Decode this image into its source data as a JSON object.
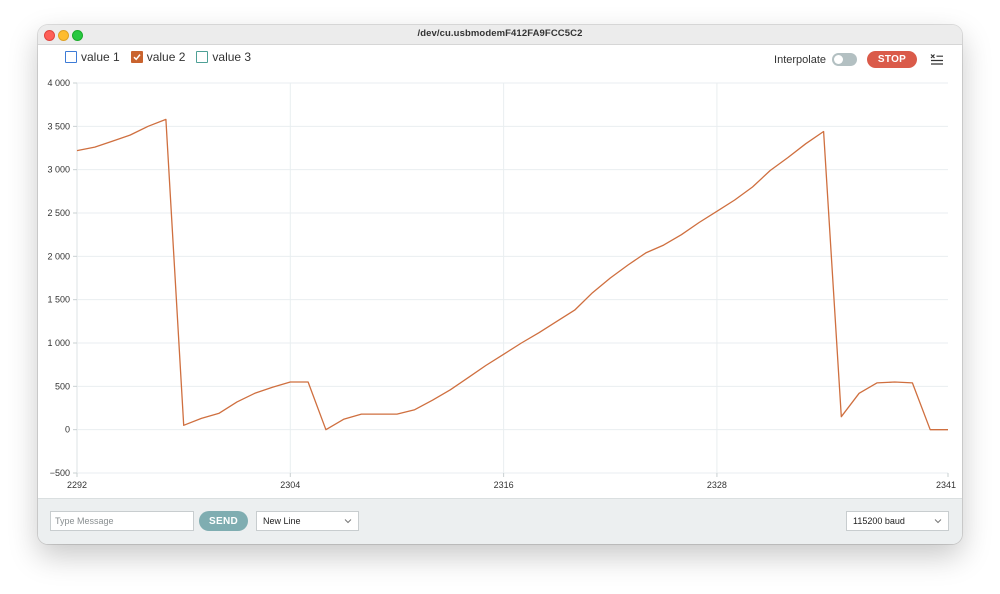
{
  "window": {
    "title": "/dev/cu.usbmodemF412FA9FCC5C2"
  },
  "legend": [
    {
      "label": "value 1",
      "checked": false,
      "color": "#3d7bd6"
    },
    {
      "label": "value 2",
      "checked": true,
      "color": "#c9632e"
    },
    {
      "label": "value 3",
      "checked": false,
      "color": "#4ea096"
    }
  ],
  "toolbar": {
    "interpolate_label": "Interpolate",
    "interpolate_on": false,
    "stop_label": "STOP",
    "clear_icon": "clear-list-icon"
  },
  "colors": {
    "line": "#cf6f3f",
    "stop": "#da5b4a",
    "send": "#7fadb1",
    "grid": "#e9eef0"
  },
  "chart_data": {
    "type": "line",
    "title": "",
    "xlabel": "",
    "ylabel": "",
    "ylim": [
      -500,
      4000
    ],
    "xlim": [
      2292,
      2341
    ],
    "y_ticks": [
      -500,
      0,
      500,
      1000,
      1500,
      2000,
      2500,
      3000,
      3500,
      4000
    ],
    "y_tick_labels": [
      "−500",
      "0",
      "500",
      "1 000",
      "1 500",
      "2 000",
      "2 500",
      "3 000",
      "3 500",
      "4 000"
    ],
    "x_ticks": [
      2292,
      2304,
      2316,
      2328,
      2341
    ],
    "x_tick_labels": [
      "2292",
      "2304",
      "2316",
      "2328",
      "2341"
    ],
    "grid": true,
    "series": [
      {
        "name": "value 2",
        "x": [
          2292,
          2293,
          2294,
          2295,
          2296,
          2297,
          2298,
          2299,
          2300,
          2301,
          2302,
          2303,
          2304,
          2305,
          2306,
          2307,
          2308,
          2309,
          2310,
          2311,
          2312,
          2313,
          2314,
          2315,
          2316,
          2317,
          2318,
          2319,
          2320,
          2321,
          2322,
          2323,
          2324,
          2325,
          2326,
          2327,
          2328,
          2329,
          2330,
          2331,
          2332,
          2333,
          2334,
          2335,
          2336,
          2337,
          2338,
          2339,
          2340,
          2341
        ],
        "y": [
          3220,
          3260,
          3330,
          3400,
          3500,
          3580,
          50,
          130,
          190,
          320,
          420,
          490,
          550,
          550,
          0,
          120,
          180,
          180,
          180,
          230,
          340,
          460,
          600,
          740,
          870,
          1000,
          1120,
          1250,
          1380,
          1580,
          1750,
          1900,
          2040,
          2130,
          2250,
          2390,
          2520,
          2650,
          2800,
          2990,
          3140,
          3300,
          3440,
          150,
          420,
          540,
          550,
          540,
          0,
          0
        ]
      }
    ]
  },
  "footer": {
    "message_placeholder": "Type Message",
    "send_label": "SEND",
    "line_ending": "New Line",
    "baud": "115200 baud"
  }
}
